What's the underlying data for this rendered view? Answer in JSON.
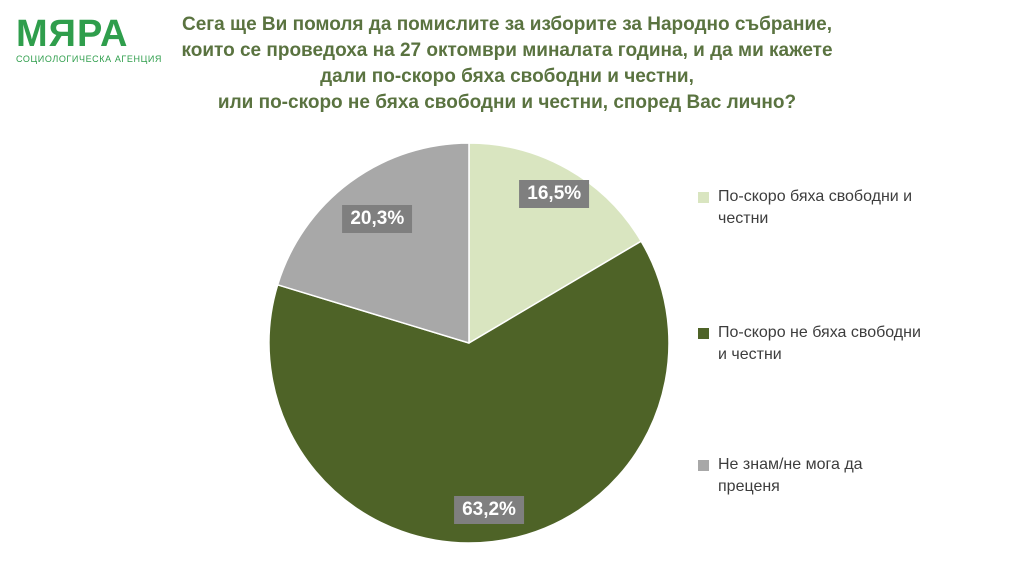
{
  "brand": {
    "name": "МЯРА",
    "tagline": "СОЦИОЛОГИЧЕСКА АГЕНЦИЯ",
    "color": "#2f9e4c"
  },
  "title": {
    "lines": [
      "Сега ще Ви помоля да помислите за изборите за Народно събрание,",
      "които се проведоха на 27 октомври миналата година, и да ми кажете",
      "дали по-скоро бяха свободни и честни,",
      "или по-скоро не бяха свободни и честни, според Вас лично?"
    ],
    "color": "#5a7340"
  },
  "chart_data": {
    "type": "pie",
    "title": "",
    "start_angle_deg": 0,
    "direction": "clockwise",
    "slices": [
      {
        "label": "По-скоро бяха свободни и честни",
        "value": 16.5,
        "value_label": "16,5%",
        "color": "#d9e5c0"
      },
      {
        "label": "По-скоро не бяха свободни и честни",
        "value": 63.2,
        "value_label": "63,2%",
        "color": "#4e6327"
      },
      {
        "label": "Не знам/не мога да преценя",
        "value": 20.3,
        "value_label": "20,3%",
        "color": "#a8a8a8"
      }
    ],
    "value_label_style": {
      "bg": "#7f7f7f",
      "fg": "#ffffff"
    },
    "label_radius": [
      0.86,
      0.84,
      0.77
    ],
    "legend_position": "right"
  },
  "legend": {
    "items": [
      {
        "lines": [
          "По-скоро бяха свободни и",
          "честни"
        ]
      },
      {
        "lines": [
          "По-скоро не бяха свободни",
          "и честни"
        ]
      },
      {
        "lines": [
          "Не знам/не мога да",
          "преценя"
        ]
      }
    ]
  }
}
